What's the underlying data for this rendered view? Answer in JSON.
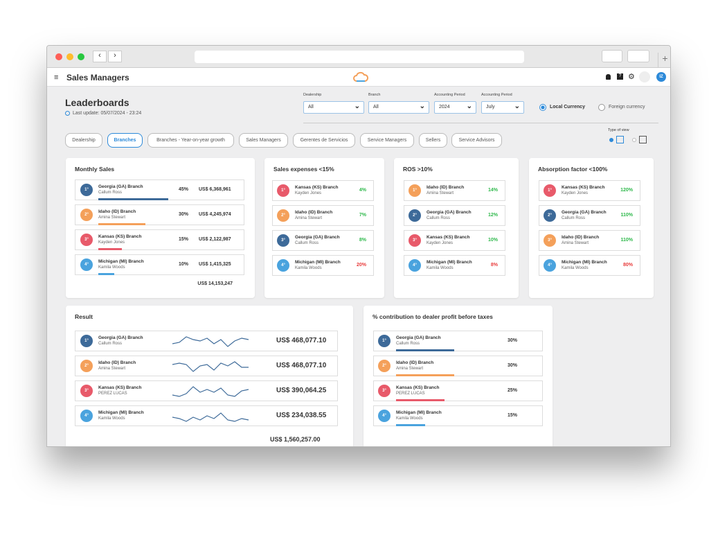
{
  "app": {
    "title": "Sales Managers",
    "avatar": "IZ"
  },
  "header": {
    "title": "Leaderboards",
    "last_update": "Last update: 05/07/2024 - 23:24"
  },
  "filters": [
    {
      "label": "Dealership",
      "value": "All"
    },
    {
      "label": "Branch",
      "value": "All"
    },
    {
      "label": "Accounting Period",
      "value": "2024"
    },
    {
      "label": "Accounting Period",
      "value": "July"
    }
  ],
  "currency": {
    "options": [
      "Local Currency",
      "Foreign currency"
    ],
    "selected": 0
  },
  "tabs": {
    "items": [
      "Dealership",
      "Branches",
      "Branches - Year-on-year growth",
      "Sales Managers",
      "Gerentes de Servicios",
      "Service Managers",
      "Sellers",
      "Service Advisors"
    ],
    "active": 1
  },
  "view": {
    "label": "Type of view",
    "selected": 0
  },
  "monthly_sales": {
    "title": "Monthly Sales",
    "bar_color": "#3d6a99",
    "rows": [
      {
        "rank": "1°",
        "name": "Georgia (GA) Branch",
        "manager": "Callum Ross",
        "share": 45,
        "share_label": "45%",
        "amount": "US$ 6,368,961",
        "color": "#3d6a99"
      },
      {
        "rank": "2°",
        "name": "Idaho (ID) Branch",
        "manager": "Amina Stewart",
        "share": 30,
        "share_label": "30%",
        "amount": "US$ 4,245,974",
        "color": "#f4a05a"
      },
      {
        "rank": "3°",
        "name": "Kansas (KS) Branch",
        "manager": "Kayden Jones",
        "share": 15,
        "share_label": "15%",
        "amount": "US$ 2,122,987",
        "color": "#e85a6a"
      },
      {
        "rank": "4°",
        "name": "Michigan (MI) Branch",
        "manager": "Kamila Woods",
        "share": 10,
        "share_label": "10%",
        "amount": "US$ 1,415,325",
        "color": "#4aa3de"
      }
    ],
    "total": "US$ 14,153,247"
  },
  "kpi_cards": [
    {
      "title": "Sales expenses <15%",
      "rows": [
        {
          "rank": "1°",
          "name": "Kansas (KS) Branch",
          "manager": "Kayden Jones",
          "value": "4%",
          "value_color": "#2db84a",
          "color": "#e85a6a"
        },
        {
          "rank": "2°",
          "name": "Idaho (ID) Branch",
          "manager": "Amina Stewart",
          "value": "7%",
          "value_color": "#2db84a",
          "color": "#f4a05a"
        },
        {
          "rank": "3°",
          "name": "Georgia (GA) Branch",
          "manager": "Callum Ross",
          "value": "8%",
          "value_color": "#2db84a",
          "color": "#3d6a99"
        },
        {
          "rank": "4°",
          "name": "Michigan (MI) Branch",
          "manager": "Kamila Woods",
          "value": "20%",
          "value_color": "#e83a3a",
          "color": "#4aa3de"
        }
      ]
    },
    {
      "title": "ROS >10%",
      "rows": [
        {
          "rank": "1°",
          "name": "Idaho (ID) Branch",
          "manager": "Amina Stewart",
          "value": "14%",
          "value_color": "#2db84a",
          "color": "#f4a05a"
        },
        {
          "rank": "2°",
          "name": "Georgia (GA) Branch",
          "manager": "Callum Ross",
          "value": "12%",
          "value_color": "#2db84a",
          "color": "#3d6a99"
        },
        {
          "rank": "3°",
          "name": "Kansas (KS) Branch",
          "manager": "Kayden Jones",
          "value": "10%",
          "value_color": "#2db84a",
          "color": "#e85a6a"
        },
        {
          "rank": "4°",
          "name": "Michigan (MI) Branch",
          "manager": "Kamila Woods",
          "value": "8%",
          "value_color": "#e83a3a",
          "color": "#4aa3de"
        }
      ]
    },
    {
      "title": "Absorption factor <100%",
      "rows": [
        {
          "rank": "1°",
          "name": "Kansas (KS) Branch",
          "manager": "Kayden Jones",
          "value": "120%",
          "value_color": "#2db84a",
          "color": "#e85a6a"
        },
        {
          "rank": "2°",
          "name": "Georgia (GA) Branch",
          "manager": "Callum Ross",
          "value": "110%",
          "value_color": "#2db84a",
          "color": "#3d6a99"
        },
        {
          "rank": "3°",
          "name": "Idaho (ID) Branch",
          "manager": "Amina Stewart",
          "value": "110%",
          "value_color": "#2db84a",
          "color": "#f4a05a"
        },
        {
          "rank": "4°",
          "name": "Michigan (MI) Branch",
          "manager": "Kamila Woods",
          "value": "80%",
          "value_color": "#e83a3a",
          "color": "#4aa3de"
        }
      ]
    }
  ],
  "result": {
    "title": "Result",
    "line_color": "#3d6a99",
    "rows": [
      {
        "rank": "1°",
        "name": "Georgia (GA) Branch",
        "manager": "Callum Ross",
        "trend": [
          3,
          4,
          8,
          6,
          5,
          7,
          3,
          6,
          1,
          5,
          7,
          6
        ],
        "amount": "US$ 468,077.10",
        "color": "#3d6a99"
      },
      {
        "rank": "2°",
        "name": "Idaho (ID) Branch",
        "manager": "Amina Stewart",
        "trend": [
          6,
          7,
          6,
          1,
          5,
          6,
          2,
          7,
          5,
          8,
          4,
          4
        ],
        "amount": "US$ 468,077.10",
        "color": "#f4a05a"
      },
      {
        "rank": "3°",
        "name": "Kansas (KS) Branch",
        "manager": "PEREZ LUCAS",
        "trend": [
          2,
          1,
          3,
          8,
          4,
          6,
          4,
          7,
          2,
          1,
          5,
          6
        ],
        "amount": "US$ 390,064.25",
        "color": "#e85a6a"
      },
      {
        "rank": "4°",
        "name": "Michigan (MI) Branch",
        "manager": "Kamila Woods",
        "trend": [
          4,
          3,
          1,
          4,
          2,
          5,
          3,
          7,
          2,
          1,
          3,
          2
        ],
        "amount": "US$ 234,038.55",
        "color": "#4aa3de"
      }
    ],
    "total": "US$ 1,560,257.00"
  },
  "contribution": {
    "title": "% contribution to dealer profit before taxes",
    "rows": [
      {
        "rank": "1°",
        "name": "Georgia (GA) Branch",
        "manager": "Callum Ross",
        "share": 30,
        "share_label": "30%",
        "color": "#3d6a99"
      },
      {
        "rank": "2°",
        "name": "Idaho (ID) Branch",
        "manager": "Amina Stewart",
        "share": 30,
        "share_label": "30%",
        "color": "#f4a05a"
      },
      {
        "rank": "3°",
        "name": "Kansas (KS) Branch",
        "manager": "PEREZ LUCAS",
        "share": 25,
        "share_label": "25%",
        "color": "#e85a6a"
      },
      {
        "rank": "4°",
        "name": "Michigan (MI) Branch",
        "manager": "Kamila Woods",
        "share": 15,
        "share_label": "15%",
        "color": "#4aa3de"
      }
    ]
  }
}
